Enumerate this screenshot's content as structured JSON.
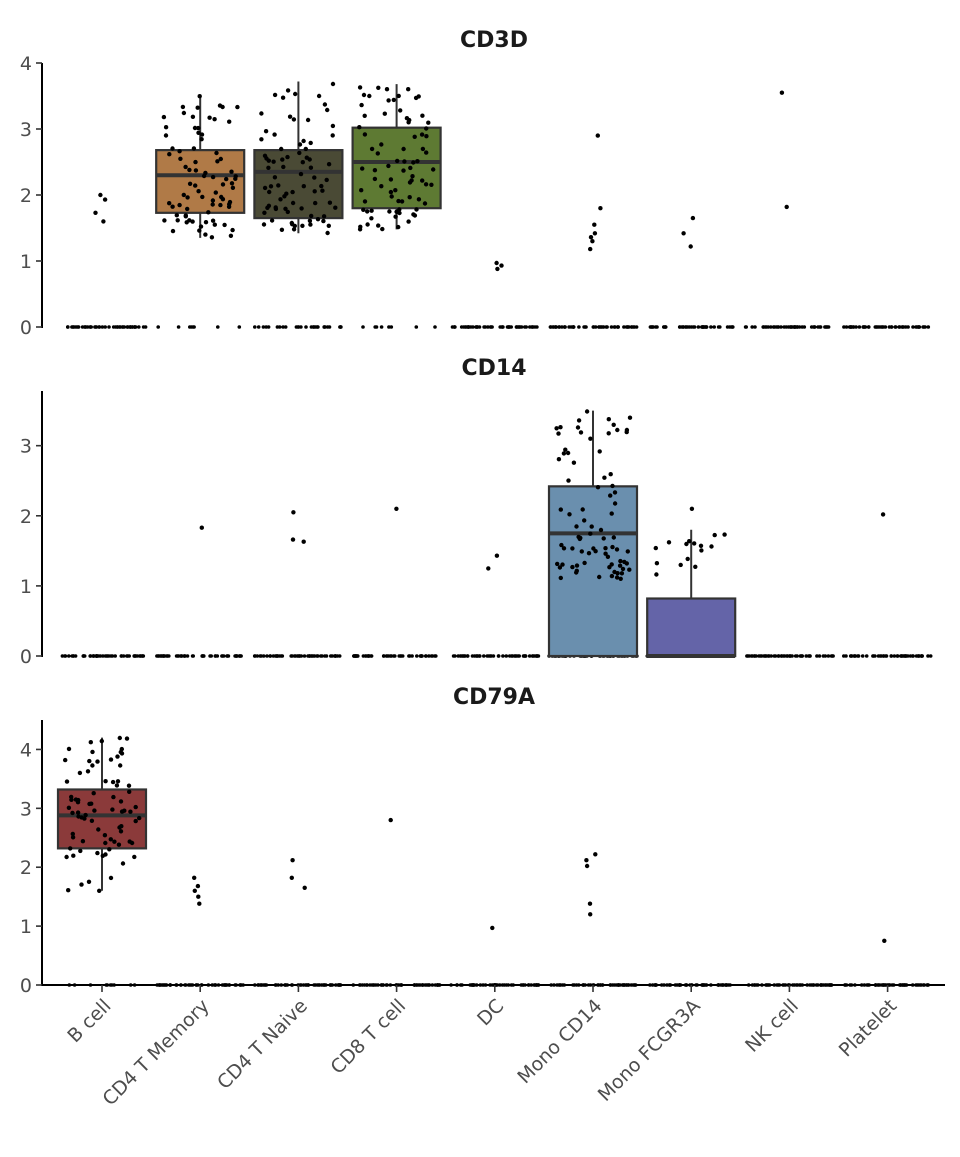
{
  "chart_data": [
    {
      "type": "box",
      "title": "CD3D",
      "ylim": [
        0,
        4
      ],
      "yticks": [
        0,
        1,
        2,
        3,
        4
      ],
      "categories": [
        "B cell",
        "CD4 T Memory",
        "CD4 T Naive",
        "CD8 T cell",
        "DC",
        "Mono CD14",
        "Mono FCGR3A",
        "NK cell",
        "Platelet"
      ],
      "colors": [
        "#8b3a3a",
        "#b07a47",
        "#4a4a35",
        "#5e7a33",
        "#7aa0c4",
        "#6a8fae",
        "#6464a8",
        "#888888",
        "#cccccc"
      ],
      "boxes": [
        null,
        {
          "q1": 1.73,
          "median": 2.3,
          "q3": 2.68,
          "lower": 1.35,
          "upper": 3.5
        },
        {
          "q1": 1.65,
          "median": 2.35,
          "q3": 2.68,
          "lower": 1.42,
          "upper": 3.72
        },
        {
          "q1": 1.8,
          "median": 2.5,
          "q3": 3.02,
          "lower": 1.48,
          "upper": 3.68
        },
        null,
        null,
        null,
        null,
        null
      ],
      "outliers": [
        [
          1.6,
          1.73,
          1.93,
          2.0
        ],
        [],
        [],
        [],
        [
          0.88,
          0.93,
          0.97
        ],
        [
          1.18,
          1.3,
          1.36,
          1.42,
          1.55,
          1.8,
          2.9
        ],
        [
          1.22,
          1.42,
          1.65
        ],
        [
          1.82,
          3.55
        ],
        []
      ],
      "zeros": [
        48,
        8,
        30,
        8,
        50,
        50,
        45,
        45,
        50
      ]
    },
    {
      "type": "box",
      "title": "CD14",
      "ylim": [
        0,
        3.78
      ],
      "yticks": [
        0,
        1,
        2,
        3
      ],
      "categories": [
        "B cell",
        "CD4 T Memory",
        "CD4 T Naive",
        "CD8 T cell",
        "DC",
        "Mono CD14",
        "Mono FCGR3A",
        "NK cell",
        "Platelet"
      ],
      "colors": [
        "#8b3a3a",
        "#b07a47",
        "#4a4a35",
        "#5e7a33",
        "#7aa0c4",
        "#6a8fae",
        "#6464a8",
        "#888888",
        "#cccccc"
      ],
      "boxes": [
        null,
        null,
        null,
        null,
        null,
        {
          "q1": 0.0,
          "median": 1.75,
          "q3": 2.42,
          "lower": 0.0,
          "upper": 3.5
        },
        {
          "q1": 0.0,
          "median": 0.0,
          "q3": 0.82,
          "lower": 0.0,
          "upper": 1.8
        },
        null,
        null
      ],
      "outliers": [
        [],
        [
          1.83
        ],
        [
          1.63,
          1.66,
          2.05
        ],
        [
          2.1
        ],
        [
          1.25,
          1.43
        ],
        [],
        [
          2.1
        ],
        [],
        [
          2.02
        ]
      ],
      "zeros": [
        50,
        50,
        50,
        50,
        50,
        50,
        50,
        50,
        50
      ]
    },
    {
      "type": "box",
      "title": "CD79A",
      "ylim": [
        0,
        4.5
      ],
      "yticks": [
        0,
        1,
        2,
        3,
        4
      ],
      "categories": [
        "B cell",
        "CD4 T Memory",
        "CD4 T Naive",
        "CD8 T cell",
        "DC",
        "Mono CD14",
        "Mono FCGR3A",
        "NK cell",
        "Platelet"
      ],
      "colors": [
        "#8b3a3a",
        "#b07a47",
        "#4a4a35",
        "#5e7a33",
        "#7aa0c4",
        "#6a8fae",
        "#6464a8",
        "#888888",
        "#cccccc"
      ],
      "boxes": [
        {
          "q1": 2.32,
          "median": 2.88,
          "q3": 3.32,
          "lower": 1.6,
          "upper": 4.2
        },
        null,
        null,
        null,
        null,
        null,
        null,
        null,
        null
      ],
      "outliers": [
        [],
        [
          1.38,
          1.5,
          1.6,
          1.68,
          1.82
        ],
        [
          1.65,
          1.82,
          2.12
        ],
        [
          2.8
        ],
        [
          0.97
        ],
        [
          1.2,
          1.38,
          2.02,
          2.12,
          2.22
        ],
        [],
        [],
        [
          0.75
        ]
      ],
      "zeros": [
        10,
        50,
        50,
        50,
        50,
        50,
        50,
        50,
        50
      ]
    }
  ]
}
